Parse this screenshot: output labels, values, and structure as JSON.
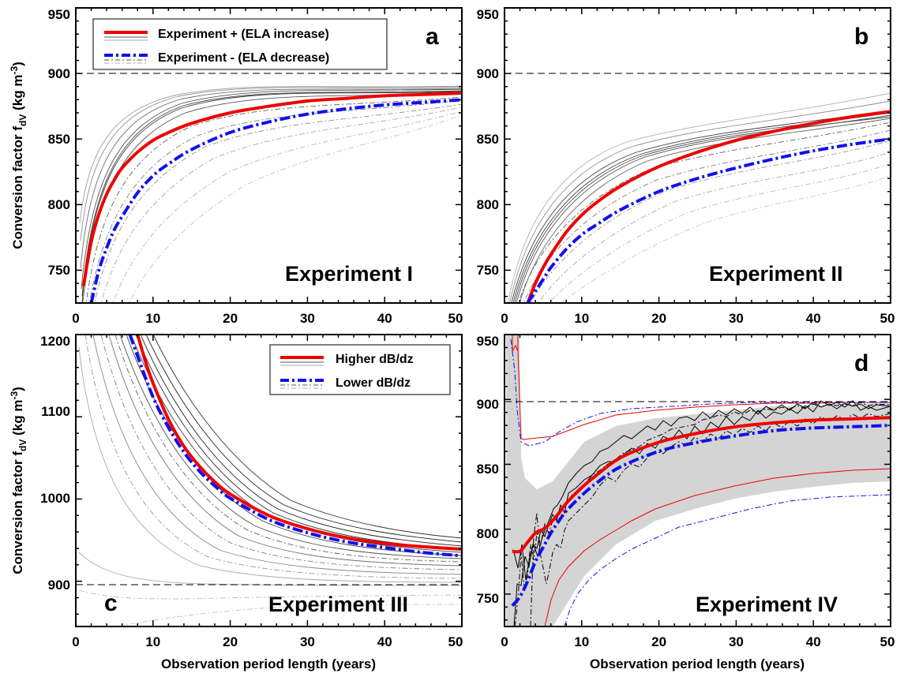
{
  "chart_data": [
    {
      "panel": "a",
      "type": "line",
      "title": "Experiment I",
      "xlabel": "",
      "ylabel": "Conversion factor f_dV (kg m⁻³)",
      "xlim": [
        0,
        50
      ],
      "ylim": [
        725,
        950
      ],
      "xticks": [
        "0",
        "10",
        "20",
        "30",
        "40",
        "50"
      ],
      "yticks": [
        "750",
        "800",
        "850",
        "900",
        "950"
      ],
      "reference_line": 900,
      "legend": {
        "placement": "top-left",
        "entries": [
          "Experiment +  (ELA increase)",
          "Experiment -  (ELA decrease)"
        ]
      },
      "series": [
        {
          "name": "Experiment +  (ELA increase)",
          "color": "#ee0000",
          "style": "solid",
          "x": [
            1,
            2,
            3,
            4,
            5,
            6,
            8,
            10,
            12,
            15,
            20,
            25,
            30,
            35,
            40,
            45,
            50
          ],
          "y": [
            738,
            772,
            793,
            808,
            819,
            828,
            840,
            849,
            855,
            862,
            870,
            875,
            879,
            881,
            883,
            884,
            885
          ]
        },
        {
          "name": "Experiment -  (ELA decrease)",
          "color": "#1010ee",
          "style": "dashdot",
          "x": [
            2,
            3,
            4,
            5,
            6,
            8,
            10,
            12,
            15,
            20,
            25,
            30,
            35,
            40,
            45,
            50
          ],
          "y": [
            725,
            750,
            767,
            781,
            791,
            809,
            822,
            831,
            842,
            855,
            863,
            869,
            873,
            876,
            878,
            880
          ]
        }
      ]
    },
    {
      "panel": "b",
      "type": "line",
      "title": "Experiment II",
      "xlabel": "",
      "ylabel": "",
      "xlim": [
        0,
        50
      ],
      "ylim": [
        725,
        950
      ],
      "xticks": [
        "0",
        "10",
        "20",
        "30",
        "40",
        "50"
      ],
      "yticks": [
        "750",
        "800",
        "850",
        "900",
        "950"
      ],
      "reference_line": 900,
      "series": [
        {
          "name": "",
          "color": "#ee0000",
          "style": "solid",
          "x": [
            3,
            4,
            5,
            6,
            8,
            10,
            12,
            15,
            20,
            25,
            30,
            35,
            40,
            45,
            50
          ],
          "y": [
            725,
            740,
            752,
            762,
            779,
            792,
            802,
            814,
            829,
            840,
            849,
            856,
            862,
            867,
            871
          ]
        },
        {
          "name": "",
          "color": "#1010ee",
          "style": "dashdot",
          "x": [
            3,
            4,
            5,
            6,
            8,
            10,
            12,
            15,
            20,
            25,
            30,
            35,
            40,
            45,
            50
          ],
          "y": [
            725,
            734,
            743,
            752,
            766,
            777,
            785,
            796,
            810,
            820,
            828,
            835,
            841,
            846,
            850
          ]
        }
      ]
    },
    {
      "panel": "c",
      "type": "line",
      "title": "Experiment III",
      "xlabel": "Observation period length (years)",
      "ylabel": "Conversion factor f_dV (kg m⁻³)",
      "xlim": [
        0,
        50
      ],
      "ylim": [
        845,
        1200
      ],
      "xticks": [
        "0",
        "10",
        "20",
        "30",
        "40",
        "50"
      ],
      "yticks": [
        "900",
        "1000",
        "1100",
        "1200"
      ],
      "reference_line": 900,
      "legend": {
        "placement": "top-right",
        "entries": [
          "Higher dB/dz",
          "Lower dB/dz"
        ]
      },
      "series": [
        {
          "name": "Higher dB/dz",
          "color": "#ee0000",
          "style": "solid",
          "x": [
            8,
            9,
            10,
            12,
            14,
            16,
            18,
            20,
            25,
            30,
            35,
            40,
            45,
            50
          ],
          "y": [
            1200,
            1168,
            1141,
            1097,
            1064,
            1040,
            1021,
            1006,
            980,
            964,
            953,
            946,
            942,
            939
          ]
        },
        {
          "name": "Lower dB/dz",
          "color": "#1010ee",
          "style": "dashdot",
          "x": [
            7,
            8,
            10,
            12,
            14,
            16,
            18,
            20,
            25,
            30,
            35,
            40,
            45,
            50
          ],
          "y": [
            1200,
            1174,
            1124,
            1087,
            1057,
            1034,
            1016,
            1001,
            975,
            959,
            948,
            941,
            935,
            931
          ]
        }
      ]
    },
    {
      "panel": "d",
      "type": "line",
      "title": "Experiment IV",
      "xlabel": "Observation period length (years)",
      "ylabel": "",
      "xlim": [
        0,
        50
      ],
      "ylim": [
        725,
        950
      ],
      "xticks": [
        "0",
        "10",
        "20",
        "30",
        "40",
        "50"
      ],
      "yticks": [
        "750",
        "800",
        "850",
        "900",
        "950"
      ],
      "reference_line": 900,
      "series": [
        {
          "name": "",
          "color": "#ee0000",
          "style": "solid",
          "x": [
            1,
            2,
            3,
            4,
            5,
            6,
            7,
            8,
            10,
            12,
            15,
            20,
            25,
            30,
            35,
            40,
            45,
            50
          ],
          "y": [
            783,
            783,
            790,
            797,
            800,
            805,
            812,
            820,
            832,
            842,
            855,
            867,
            874,
            879,
            882,
            884,
            885,
            886
          ]
        },
        {
          "name": "",
          "color": "#1010ee",
          "style": "dashdot",
          "x": [
            1,
            2,
            3,
            4,
            5,
            6,
            7,
            8,
            10,
            12,
            15,
            20,
            25,
            30,
            35,
            40,
            45,
            50
          ],
          "y": [
            741,
            748,
            760,
            775,
            786,
            797,
            806,
            814,
            826,
            836,
            848,
            860,
            867,
            872,
            876,
            878,
            879,
            880
          ]
        }
      ]
    }
  ]
}
